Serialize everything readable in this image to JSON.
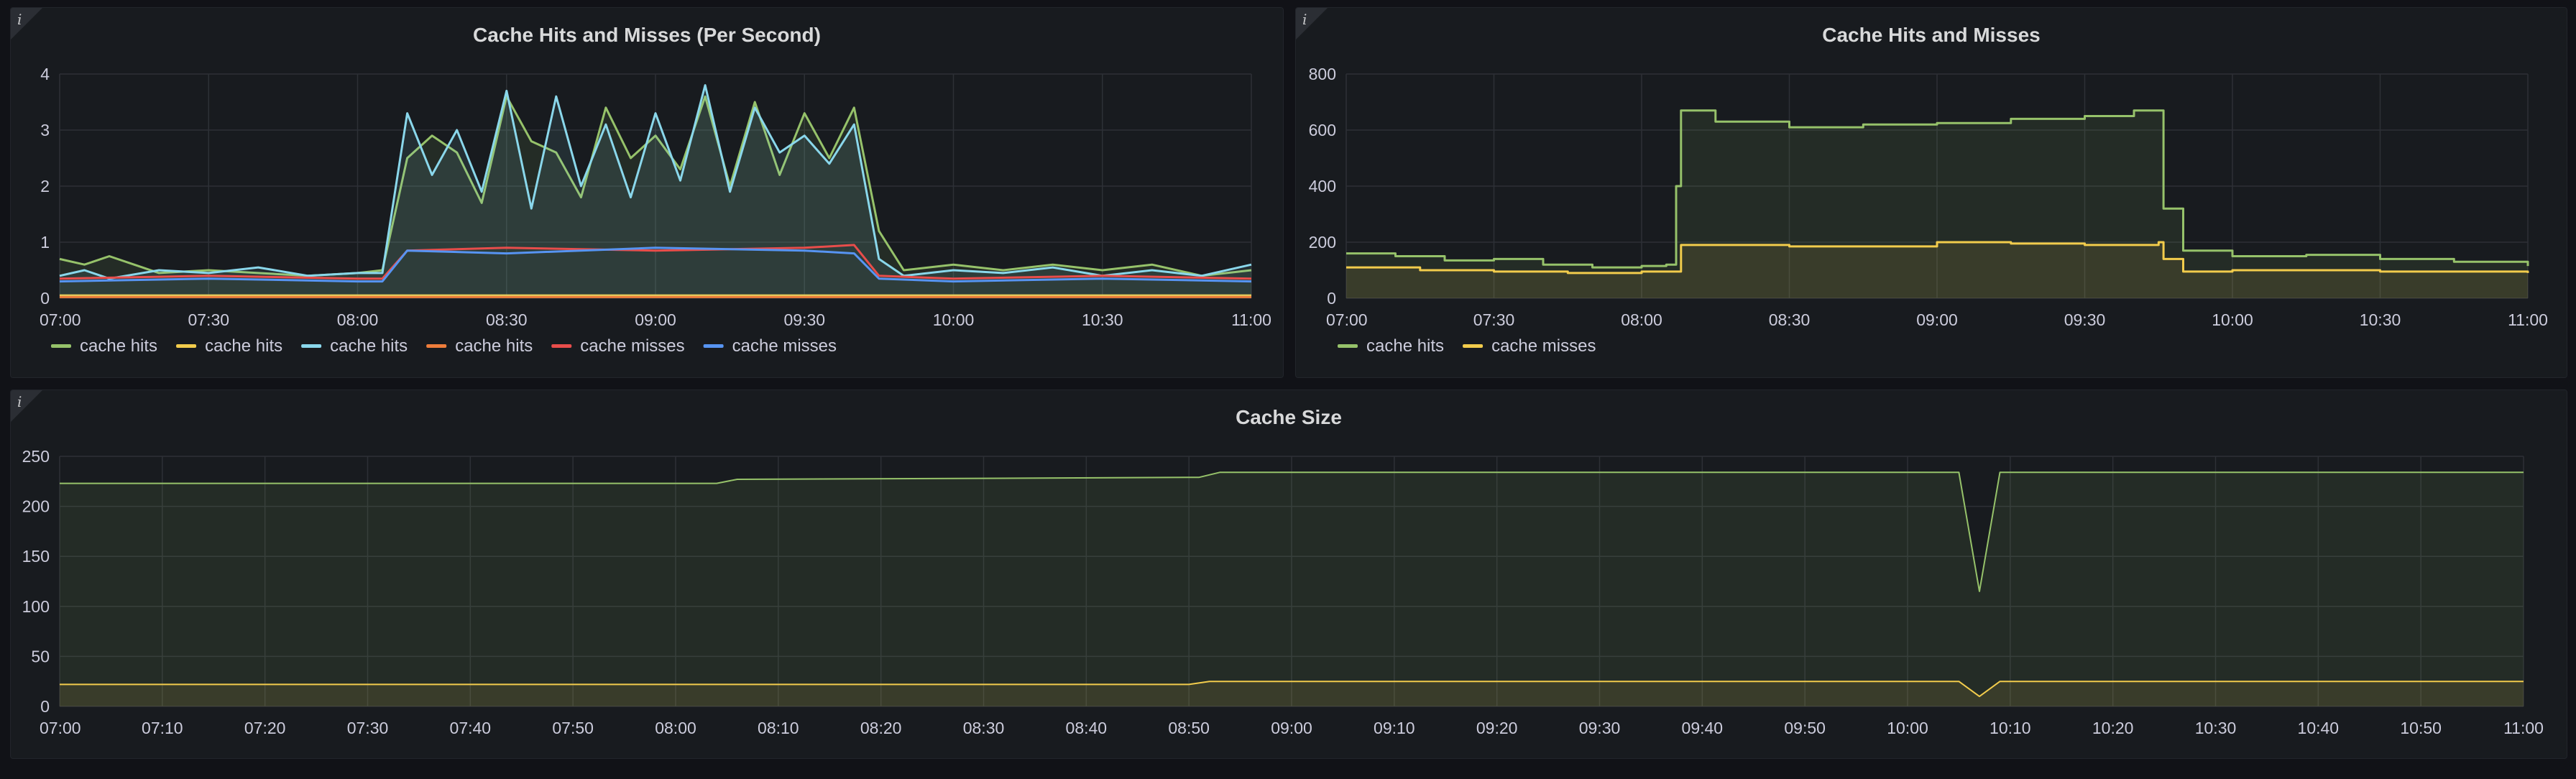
{
  "panels": [
    {
      "title": "Cache Hits and Misses (Per Second)",
      "info_icon": "info-icon"
    },
    {
      "title": "Cache Hits and Misses",
      "info_icon": "info-icon"
    },
    {
      "title": "Cache Size",
      "info_icon": "info-icon"
    }
  ],
  "chart_data": [
    {
      "type": "line",
      "title": "Cache Hits and Misses (Per Second)",
      "x_ticks": [
        "07:00",
        "07:30",
        "08:00",
        "08:30",
        "09:00",
        "09:30",
        "10:00",
        "10:30",
        "11:00"
      ],
      "y_ticks": [
        0,
        1,
        2,
        3,
        4
      ],
      "xlim": [
        "07:00",
        "11:00"
      ],
      "ylim": [
        0,
        4
      ],
      "grid": true,
      "legend_placement": "bottom-left",
      "series": [
        {
          "name": "cache hits",
          "color": "#96c26a",
          "fill": true,
          "points": [
            [
              "07:00",
              0.7
            ],
            [
              "07:05",
              0.6
            ],
            [
              "07:10",
              0.75
            ],
            [
              "07:15",
              0.6
            ],
            [
              "07:20",
              0.45
            ],
            [
              "07:30",
              0.5
            ],
            [
              "07:40",
              0.45
            ],
            [
              "07:50",
              0.4
            ],
            [
              "08:00",
              0.45
            ],
            [
              "08:05",
              0.5
            ],
            [
              "08:10",
              2.5
            ],
            [
              "08:15",
              2.9
            ],
            [
              "08:20",
              2.6
            ],
            [
              "08:25",
              1.7
            ],
            [
              "08:30",
              3.6
            ],
            [
              "08:35",
              2.8
            ],
            [
              "08:40",
              2.6
            ],
            [
              "08:45",
              1.8
            ],
            [
              "08:50",
              3.4
            ],
            [
              "08:55",
              2.5
            ],
            [
              "09:00",
              2.9
            ],
            [
              "09:05",
              2.3
            ],
            [
              "09:10",
              3.6
            ],
            [
              "09:15",
              2.0
            ],
            [
              "09:20",
              3.5
            ],
            [
              "09:25",
              2.2
            ],
            [
              "09:30",
              3.3
            ],
            [
              "09:35",
              2.5
            ],
            [
              "09:40",
              3.4
            ],
            [
              "09:45",
              1.2
            ],
            [
              "09:50",
              0.5
            ],
            [
              "10:00",
              0.6
            ],
            [
              "10:10",
              0.5
            ],
            [
              "10:20",
              0.6
            ],
            [
              "10:30",
              0.5
            ],
            [
              "10:40",
              0.6
            ],
            [
              "10:50",
              0.4
            ],
            [
              "11:00",
              0.5
            ]
          ]
        },
        {
          "name": "cache hits",
          "color": "#f2cc4c",
          "fill": false,
          "points": [
            [
              "07:00",
              0.05
            ],
            [
              "11:00",
              0.05
            ]
          ]
        },
        {
          "name": "cache hits",
          "color": "#8ad7eb",
          "fill": true,
          "points": [
            [
              "07:00",
              0.4
            ],
            [
              "07:05",
              0.5
            ],
            [
              "07:10",
              0.35
            ],
            [
              "07:20",
              0.5
            ],
            [
              "07:30",
              0.45
            ],
            [
              "07:40",
              0.55
            ],
            [
              "07:50",
              0.4
            ],
            [
              "08:00",
              0.45
            ],
            [
              "08:05",
              0.45
            ],
            [
              "08:10",
              3.3
            ],
            [
              "08:15",
              2.2
            ],
            [
              "08:20",
              3.0
            ],
            [
              "08:25",
              1.9
            ],
            [
              "08:30",
              3.7
            ],
            [
              "08:35",
              1.6
            ],
            [
              "08:40",
              3.6
            ],
            [
              "08:45",
              2.0
            ],
            [
              "08:50",
              3.1
            ],
            [
              "08:55",
              1.8
            ],
            [
              "09:00",
              3.3
            ],
            [
              "09:05",
              2.1
            ],
            [
              "09:10",
              3.8
            ],
            [
              "09:15",
              1.9
            ],
            [
              "09:20",
              3.4
            ],
            [
              "09:25",
              2.6
            ],
            [
              "09:30",
              2.9
            ],
            [
              "09:35",
              2.4
            ],
            [
              "09:40",
              3.1
            ],
            [
              "09:45",
              0.7
            ],
            [
              "09:50",
              0.4
            ],
            [
              "10:00",
              0.5
            ],
            [
              "10:10",
              0.45
            ],
            [
              "10:20",
              0.55
            ],
            [
              "10:30",
              0.4
            ],
            [
              "10:40",
              0.5
            ],
            [
              "10:50",
              0.4
            ],
            [
              "11:00",
              0.6
            ]
          ]
        },
        {
          "name": "cache hits",
          "color": "#ee7d3b",
          "fill": false,
          "points": [
            [
              "07:00",
              0.02
            ],
            [
              "11:00",
              0.02
            ]
          ]
        },
        {
          "name": "cache misses",
          "color": "#e84d4b",
          "fill": false,
          "points": [
            [
              "07:00",
              0.35
            ],
            [
              "07:30",
              0.4
            ],
            [
              "08:00",
              0.35
            ],
            [
              "08:05",
              0.35
            ],
            [
              "08:10",
              0.85
            ],
            [
              "08:30",
              0.9
            ],
            [
              "09:00",
              0.85
            ],
            [
              "09:30",
              0.9
            ],
            [
              "09:40",
              0.95
            ],
            [
              "09:45",
              0.4
            ],
            [
              "10:00",
              0.35
            ],
            [
              "10:30",
              0.4
            ],
            [
              "11:00",
              0.35
            ]
          ]
        },
        {
          "name": "cache misses",
          "color": "#5794f2",
          "fill": false,
          "points": [
            [
              "07:00",
              0.3
            ],
            [
              "07:30",
              0.35
            ],
            [
              "08:00",
              0.3
            ],
            [
              "08:05",
              0.3
            ],
            [
              "08:10",
              0.85
            ],
            [
              "08:30",
              0.8
            ],
            [
              "09:00",
              0.9
            ],
            [
              "09:30",
              0.85
            ],
            [
              "09:40",
              0.8
            ],
            [
              "09:45",
              0.35
            ],
            [
              "10:00",
              0.3
            ],
            [
              "10:30",
              0.35
            ],
            [
              "11:00",
              0.3
            ]
          ]
        }
      ]
    },
    {
      "type": "line",
      "title": "Cache Hits and Misses",
      "x_ticks": [
        "07:00",
        "07:30",
        "08:00",
        "08:30",
        "09:00",
        "09:30",
        "10:00",
        "10:30",
        "11:00"
      ],
      "y_ticks": [
        0,
        200,
        400,
        600,
        800
      ],
      "xlim": [
        "07:00",
        "11:00"
      ],
      "ylim": [
        0,
        800
      ],
      "grid": true,
      "line_interpolation": "step",
      "legend_placement": "bottom-left",
      "series": [
        {
          "name": "cache hits",
          "color": "#96c26a",
          "fill": true,
          "points": [
            [
              "07:00",
              160
            ],
            [
              "07:10",
              150
            ],
            [
              "07:20",
              135
            ],
            [
              "07:30",
              140
            ],
            [
              "07:40",
              120
            ],
            [
              "07:50",
              110
            ],
            [
              "08:00",
              115
            ],
            [
              "08:05",
              120
            ],
            [
              "08:07",
              400
            ],
            [
              "08:08",
              670
            ],
            [
              "08:15",
              630
            ],
            [
              "08:30",
              610
            ],
            [
              "08:45",
              620
            ],
            [
              "09:00",
              625
            ],
            [
              "09:15",
              640
            ],
            [
              "09:30",
              650
            ],
            [
              "09:40",
              670
            ],
            [
              "09:45",
              670
            ],
            [
              "09:46",
              320
            ],
            [
              "09:50",
              170
            ],
            [
              "10:00",
              150
            ],
            [
              "10:15",
              155
            ],
            [
              "10:30",
              140
            ],
            [
              "10:45",
              130
            ],
            [
              "11:00",
              115
            ]
          ]
        },
        {
          "name": "cache misses",
          "color": "#f2cc4c",
          "fill": true,
          "points": [
            [
              "07:00",
              110
            ],
            [
              "07:15",
              100
            ],
            [
              "07:30",
              95
            ],
            [
              "07:45",
              90
            ],
            [
              "08:00",
              95
            ],
            [
              "08:07",
              95
            ],
            [
              "08:08",
              190
            ],
            [
              "08:30",
              185
            ],
            [
              "09:00",
              200
            ],
            [
              "09:15",
              195
            ],
            [
              "09:30",
              190
            ],
            [
              "09:45",
              200
            ],
            [
              "09:46",
              140
            ],
            [
              "09:50",
              95
            ],
            [
              "10:00",
              100
            ],
            [
              "10:30",
              95
            ],
            [
              "11:00",
              90
            ]
          ]
        }
      ]
    },
    {
      "type": "line",
      "title": "Cache Size",
      "x_ticks": [
        "07:00",
        "07:10",
        "07:20",
        "07:30",
        "07:40",
        "07:50",
        "08:00",
        "08:10",
        "08:20",
        "08:30",
        "08:40",
        "08:50",
        "09:00",
        "09:10",
        "09:20",
        "09:30",
        "09:40",
        "09:50",
        "10:00",
        "10:10",
        "10:20",
        "10:30",
        "10:40",
        "10:50",
        "11:00"
      ],
      "y_ticks": [
        0,
        50,
        100,
        150,
        200,
        250
      ],
      "xlim": [
        "07:00",
        "11:00"
      ],
      "ylim": [
        0,
        250
      ],
      "grid": true,
      "series": [
        {
          "color": "#96c26a",
          "fill": true,
          "points": [
            [
              "07:00",
              223
            ],
            [
              "08:04",
              223
            ],
            [
              "08:06",
              227
            ],
            [
              "08:30",
              228
            ],
            [
              "08:51",
              229
            ],
            [
              "08:53",
              234
            ],
            [
              "10:05",
              234
            ],
            [
              "10:07",
              115
            ],
            [
              "10:09",
              234
            ],
            [
              "11:00",
              234
            ]
          ]
        },
        {
          "color": "#f2cc4c",
          "fill": true,
          "points": [
            [
              "07:00",
              22
            ],
            [
              "08:50",
              22
            ],
            [
              "08:52",
              25
            ],
            [
              "10:05",
              25
            ],
            [
              "10:07",
              10
            ],
            [
              "10:09",
              25
            ],
            [
              "11:00",
              25
            ]
          ]
        }
      ]
    }
  ]
}
